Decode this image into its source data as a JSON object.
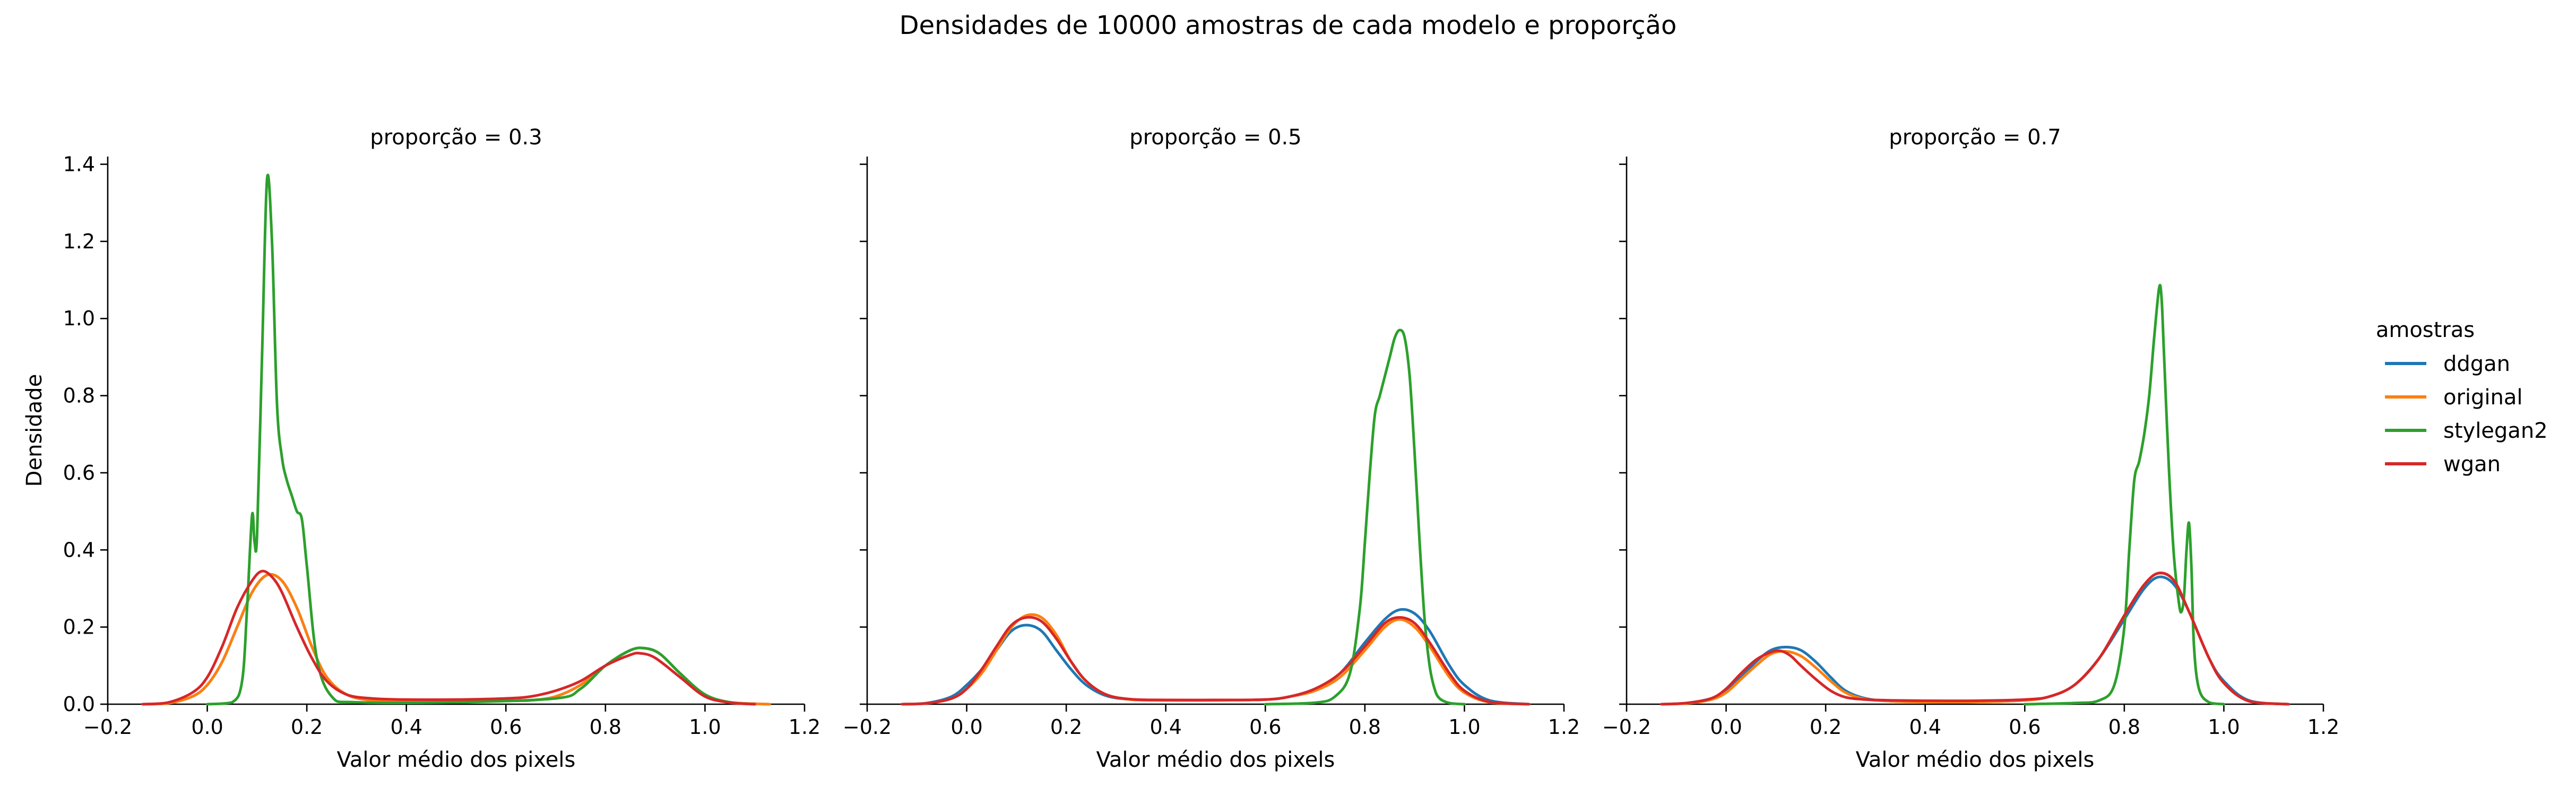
{
  "suptitle": "Densidades de 10000 amostras de cada modelo e proporção",
  "colors": {
    "ddgan": "#1f77b4",
    "original": "#ff7f0e",
    "stylegan2": "#2ca02c",
    "wgan": "#d62728"
  },
  "legend": {
    "title": "amostras",
    "placement": "right",
    "entries": [
      "ddgan",
      "original",
      "stylegan2",
      "wgan"
    ]
  },
  "chart_data": [
    {
      "type": "line",
      "title": "proporção = 0.3",
      "xlabel": "Valor médio dos pixels",
      "ylabel": "Densidade",
      "xlim": [
        -0.2,
        1.2
      ],
      "ylim": [
        0,
        1.42
      ],
      "xticks": [
        "−0.2",
        "0.0",
        "0.2",
        "0.4",
        "0.6",
        "0.8",
        "1.0",
        "1.2"
      ],
      "yticks": [
        "0.0",
        "0.2",
        "0.4",
        "0.6",
        "0.8",
        "1.0",
        "1.2",
        "1.4"
      ],
      "grid": false,
      "series": [
        {
          "name": "ddgan",
          "x": [
            -0.13,
            -0.08,
            -0.03,
            0.0,
            0.03,
            0.06,
            0.09,
            0.12,
            0.15,
            0.18,
            0.21,
            0.24,
            0.28,
            0.33,
            0.4,
            0.5,
            0.6,
            0.65,
            0.7,
            0.75,
            0.8,
            0.85,
            0.88,
            0.91,
            0.95,
            1.0,
            1.05,
            1.13
          ],
          "y": [
            0,
            0.002,
            0.02,
            0.05,
            0.11,
            0.2,
            0.29,
            0.335,
            0.32,
            0.25,
            0.15,
            0.07,
            0.025,
            0.01,
            0.008,
            0.008,
            0.009,
            0.01,
            0.02,
            0.05,
            0.1,
            0.14,
            0.145,
            0.13,
            0.08,
            0.025,
            0.005,
            0
          ]
        },
        {
          "name": "original",
          "x": [
            -0.13,
            -0.08,
            -0.03,
            0.0,
            0.03,
            0.06,
            0.09,
            0.12,
            0.15,
            0.18,
            0.21,
            0.24,
            0.28,
            0.33,
            0.4,
            0.5,
            0.6,
            0.65,
            0.7,
            0.75,
            0.8,
            0.85,
            0.88,
            0.91,
            0.95,
            1.0,
            1.05,
            1.13
          ],
          "y": [
            0,
            0.002,
            0.02,
            0.05,
            0.11,
            0.2,
            0.29,
            0.335,
            0.32,
            0.25,
            0.15,
            0.07,
            0.025,
            0.01,
            0.008,
            0.008,
            0.009,
            0.01,
            0.02,
            0.05,
            0.1,
            0.14,
            0.145,
            0.13,
            0.08,
            0.025,
            0.005,
            0
          ]
        },
        {
          "name": "stylegan2",
          "x": [
            0.0,
            0.05,
            0.07,
            0.08,
            0.09,
            0.095,
            0.1,
            0.11,
            0.12,
            0.13,
            0.14,
            0.15,
            0.16,
            0.17,
            0.18,
            0.19,
            0.2,
            0.22,
            0.25,
            0.3,
            0.5,
            0.7,
            0.75,
            0.8,
            0.85,
            0.88,
            0.91,
            0.95,
            1.0,
            1.05,
            1.1
          ],
          "y": [
            0,
            0.005,
            0.06,
            0.25,
            0.49,
            0.42,
            0.44,
            0.9,
            1.36,
            1.2,
            0.78,
            0.64,
            0.58,
            0.54,
            0.5,
            0.48,
            0.36,
            0.12,
            0.02,
            0.005,
            0.005,
            0.015,
            0.04,
            0.1,
            0.14,
            0.145,
            0.13,
            0.08,
            0.025,
            0.005,
            0
          ]
        },
        {
          "name": "wgan",
          "x": [
            -0.13,
            -0.08,
            -0.03,
            0.0,
            0.03,
            0.06,
            0.09,
            0.11,
            0.13,
            0.15,
            0.18,
            0.21,
            0.24,
            0.28,
            0.33,
            0.4,
            0.5,
            0.6,
            0.65,
            0.7,
            0.75,
            0.8,
            0.85,
            0.87,
            0.9,
            0.95,
            1.0,
            1.05,
            1.1
          ],
          "y": [
            0,
            0.004,
            0.03,
            0.07,
            0.15,
            0.25,
            0.32,
            0.345,
            0.33,
            0.29,
            0.2,
            0.12,
            0.06,
            0.025,
            0.015,
            0.012,
            0.012,
            0.015,
            0.02,
            0.035,
            0.06,
            0.1,
            0.128,
            0.132,
            0.12,
            0.07,
            0.02,
            0.004,
            0
          ]
        }
      ]
    },
    {
      "type": "line",
      "title": "proporção = 0.5",
      "xlabel": "Valor médio dos pixels",
      "xlim": [
        -0.2,
        1.2
      ],
      "ylim": [
        0,
        1.42
      ],
      "xticks": [
        "−0.2",
        "0.0",
        "0.2",
        "0.4",
        "0.6",
        "0.8",
        "1.0",
        "1.2"
      ],
      "grid": false,
      "series": [
        {
          "name": "ddgan",
          "x": [
            -0.13,
            -0.08,
            -0.03,
            0.0,
            0.03,
            0.06,
            0.09,
            0.12,
            0.15,
            0.18,
            0.21,
            0.24,
            0.28,
            0.33,
            0.4,
            0.5,
            0.6,
            0.65,
            0.7,
            0.75,
            0.8,
            0.84,
            0.87,
            0.9,
            0.93,
            0.97,
            1.0,
            1.05,
            1.13
          ],
          "y": [
            0,
            0.003,
            0.02,
            0.05,
            0.09,
            0.14,
            0.19,
            0.205,
            0.19,
            0.14,
            0.09,
            0.05,
            0.022,
            0.012,
            0.01,
            0.01,
            0.012,
            0.02,
            0.04,
            0.08,
            0.16,
            0.22,
            0.245,
            0.235,
            0.19,
            0.1,
            0.05,
            0.01,
            0
          ]
        },
        {
          "name": "original",
          "x": [
            -0.13,
            -0.08,
            -0.03,
            0.0,
            0.03,
            0.06,
            0.09,
            0.12,
            0.15,
            0.18,
            0.21,
            0.24,
            0.28,
            0.33,
            0.4,
            0.5,
            0.6,
            0.65,
            0.7,
            0.75,
            0.8,
            0.84,
            0.87,
            0.9,
            0.93,
            0.97,
            1.0,
            1.05,
            1.13
          ],
          "y": [
            0,
            0.002,
            0.015,
            0.04,
            0.08,
            0.14,
            0.2,
            0.23,
            0.225,
            0.18,
            0.11,
            0.06,
            0.025,
            0.012,
            0.01,
            0.01,
            0.012,
            0.02,
            0.035,
            0.07,
            0.14,
            0.2,
            0.22,
            0.2,
            0.15,
            0.07,
            0.03,
            0.005,
            0
          ]
        },
        {
          "name": "stylegan2",
          "x": [
            0.6,
            0.7,
            0.74,
            0.77,
            0.79,
            0.8,
            0.81,
            0.82,
            0.83,
            0.84,
            0.85,
            0.86,
            0.87,
            0.88,
            0.89,
            0.9,
            0.91,
            0.92,
            0.93,
            0.94,
            0.95,
            0.97,
            1.0
          ],
          "y": [
            0,
            0.004,
            0.02,
            0.08,
            0.25,
            0.42,
            0.6,
            0.75,
            0.8,
            0.85,
            0.9,
            0.95,
            0.97,
            0.95,
            0.85,
            0.65,
            0.42,
            0.22,
            0.1,
            0.04,
            0.015,
            0.003,
            0
          ]
        },
        {
          "name": "wgan",
          "x": [
            -0.13,
            -0.08,
            -0.03,
            0.0,
            0.03,
            0.06,
            0.09,
            0.12,
            0.15,
            0.18,
            0.21,
            0.24,
            0.28,
            0.33,
            0.4,
            0.5,
            0.6,
            0.65,
            0.7,
            0.75,
            0.8,
            0.84,
            0.87,
            0.9,
            0.93,
            0.97,
            1.0,
            1.05,
            1.13
          ],
          "y": [
            0,
            0.002,
            0.015,
            0.04,
            0.09,
            0.15,
            0.205,
            0.225,
            0.215,
            0.17,
            0.11,
            0.06,
            0.025,
            0.013,
            0.011,
            0.011,
            0.012,
            0.02,
            0.04,
            0.08,
            0.15,
            0.21,
            0.225,
            0.21,
            0.16,
            0.08,
            0.035,
            0.006,
            0
          ]
        }
      ]
    },
    {
      "type": "line",
      "title": "proporção = 0.7",
      "xlabel": "Valor médio dos pixels",
      "xlim": [
        -0.2,
        1.2
      ],
      "ylim": [
        0,
        1.42
      ],
      "xticks": [
        "−0.2",
        "0.0",
        "0.2",
        "0.4",
        "0.6",
        "0.8",
        "1.0",
        "1.2"
      ],
      "grid": false,
      "series": [
        {
          "name": "ddgan",
          "x": [
            -0.13,
            -0.08,
            -0.03,
            0.0,
            0.03,
            0.06,
            0.09,
            0.12,
            0.15,
            0.18,
            0.21,
            0.24,
            0.28,
            0.33,
            0.4,
            0.5,
            0.6,
            0.65,
            0.7,
            0.75,
            0.8,
            0.84,
            0.87,
            0.9,
            0.93,
            0.97,
            1.0,
            1.05,
            1.13
          ],
          "y": [
            0,
            0.003,
            0.015,
            0.035,
            0.07,
            0.11,
            0.14,
            0.148,
            0.14,
            0.11,
            0.07,
            0.035,
            0.015,
            0.008,
            0.006,
            0.006,
            0.01,
            0.02,
            0.05,
            0.12,
            0.22,
            0.3,
            0.33,
            0.31,
            0.24,
            0.12,
            0.06,
            0.01,
            0
          ]
        },
        {
          "name": "original",
          "x": [
            -0.13,
            -0.08,
            -0.03,
            0.0,
            0.03,
            0.06,
            0.09,
            0.12,
            0.15,
            0.18,
            0.21,
            0.24,
            0.28,
            0.33,
            0.4,
            0.5,
            0.6,
            0.65,
            0.7,
            0.75,
            0.8,
            0.84,
            0.87,
            0.9,
            0.93,
            0.97,
            1.0,
            1.05,
            1.13
          ],
          "y": [
            0,
            0.002,
            0.012,
            0.03,
            0.065,
            0.1,
            0.13,
            0.137,
            0.125,
            0.095,
            0.06,
            0.03,
            0.013,
            0.008,
            0.006,
            0.006,
            0.01,
            0.02,
            0.05,
            0.12,
            0.23,
            0.31,
            0.34,
            0.32,
            0.24,
            0.12,
            0.055,
            0.008,
            0
          ]
        },
        {
          "name": "stylegan2",
          "x": [
            0.6,
            0.7,
            0.75,
            0.78,
            0.8,
            0.81,
            0.82,
            0.83,
            0.84,
            0.85,
            0.86,
            0.87,
            0.875,
            0.88,
            0.89,
            0.9,
            0.91,
            0.915,
            0.92,
            0.925,
            0.93,
            0.935,
            0.94,
            0.95,
            0.97,
            1.0
          ],
          "y": [
            0,
            0.003,
            0.01,
            0.05,
            0.2,
            0.4,
            0.58,
            0.63,
            0.7,
            0.8,
            0.95,
            1.08,
            1.05,
            0.9,
            0.6,
            0.38,
            0.26,
            0.24,
            0.28,
            0.4,
            0.47,
            0.35,
            0.15,
            0.04,
            0.005,
            0
          ]
        },
        {
          "name": "wgan",
          "x": [
            -0.13,
            -0.08,
            -0.03,
            0.0,
            0.03,
            0.06,
            0.09,
            0.11,
            0.13,
            0.15,
            0.18,
            0.21,
            0.24,
            0.28,
            0.33,
            0.4,
            0.5,
            0.6,
            0.65,
            0.7,
            0.75,
            0.8,
            0.84,
            0.87,
            0.9,
            0.93,
            0.97,
            1.0,
            1.05,
            1.13
          ],
          "y": [
            0,
            0.003,
            0.015,
            0.04,
            0.08,
            0.115,
            0.135,
            0.138,
            0.125,
            0.1,
            0.065,
            0.035,
            0.018,
            0.012,
            0.01,
            0.009,
            0.009,
            0.012,
            0.02,
            0.05,
            0.12,
            0.23,
            0.31,
            0.34,
            0.32,
            0.24,
            0.12,
            0.055,
            0.008,
            0
          ]
        }
      ]
    }
  ]
}
